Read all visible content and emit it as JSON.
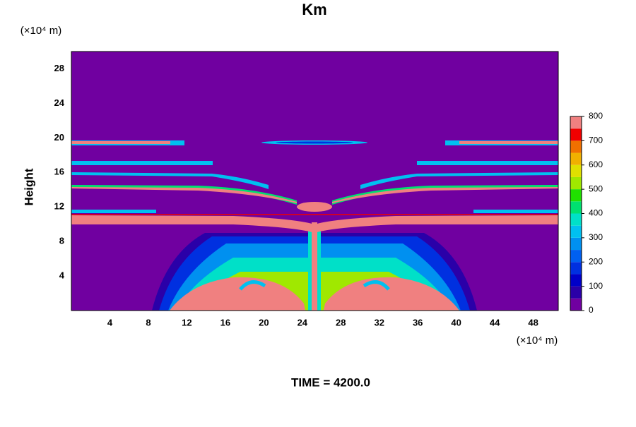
{
  "chart_data": {
    "type": "contour",
    "title": "Km",
    "y_label": "Height",
    "y_unit": "(×10⁴ m)",
    "x_unit": "(×10⁴ m)",
    "footer": "TIME = 4200.0",
    "xlim": [
      0,
      50.6
    ],
    "ylim": [
      0,
      30
    ],
    "xticks": [
      4,
      8,
      12,
      16,
      20,
      24,
      28,
      32,
      36,
      40,
      44,
      48
    ],
    "yticks": [
      4,
      8,
      12,
      16,
      20,
      24,
      28
    ],
    "colorbar": {
      "levels": [
        0,
        50,
        100,
        150,
        200,
        250,
        300,
        350,
        400,
        450,
        500,
        550,
        600,
        650,
        700,
        750,
        800
      ],
      "colors": [
        "#7000a0",
        "#2a00a8",
        "#0000c8",
        "#0030e0",
        "#0060f0",
        "#0090f0",
        "#00c0f0",
        "#00e0c8",
        "#00e070",
        "#20e000",
        "#a0e800",
        "#e0e000",
        "#f0b000",
        "#f07000",
        "#f00000",
        "#f08080"
      ],
      "ticks": [
        0,
        100,
        200,
        300,
        400,
        500,
        600,
        700,
        800
      ]
    }
  }
}
